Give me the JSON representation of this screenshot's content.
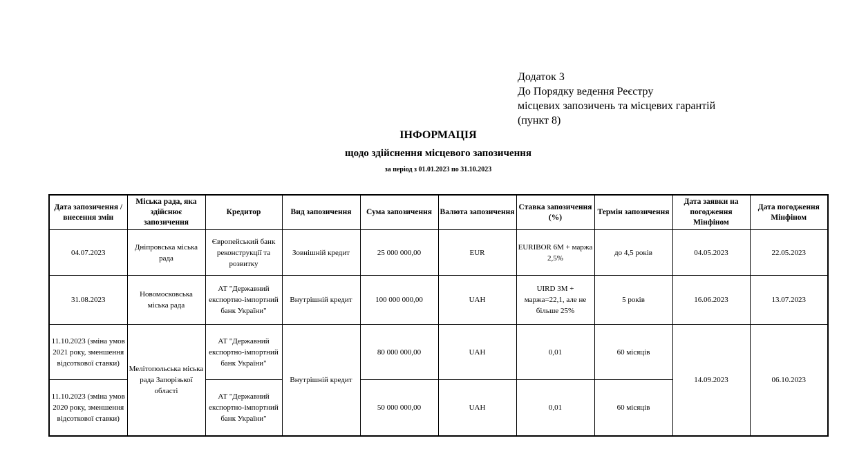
{
  "annex": {
    "line1": "Додаток 3",
    "line2": "До Порядку ведення Реєстру",
    "line3": "місцевих запозичень та місцевих гарантій",
    "line4": "(пункт 8)"
  },
  "title": "ІНФОРМАЦІЯ",
  "subtitle": "щодо здійснення місцевого запозичення",
  "period": "за період з 01.01.2023 по  31.10.2023",
  "table": {
    "headers": [
      "Дата запозичення / внесення змін",
      "Міська рада, яка здійснює запозичення",
      "Кредитор",
      "Вид запозичення",
      "Сума запозичення",
      "Валюта запозичення",
      "Ставка запозичення (%)",
      "Термін запозичення",
      "Дата заявки на погодження Мінфіном",
      "Дата погодження Мінфіном"
    ],
    "rows": [
      {
        "date": "04.07.2023",
        "council": "Дніпровська міська рада",
        "creditor": "Європейський банк реконструкції та розвитку",
        "type": "Зовнішній кредит",
        "amount": "25 000 000,00",
        "currency": "EUR",
        "rate": "EURIBOR 6M + маржа 2,5%",
        "term": "до 4,5 років",
        "request_date": "04.05.2023",
        "approval_date": "22.05.2023"
      },
      {
        "date": "31.08.2023",
        "council": "Новомосковська міська рада",
        "creditor": "АТ \"Державний експортно-імпортний банк України\"",
        "type": "Внутрішній кредит",
        "amount": "100 000 000,00",
        "currency": "UAH",
        "rate": "UIRD 3M + маржа=22,1, але  не більше 25%",
        "term": "5 років",
        "request_date": "16.06.2023",
        "approval_date": "13.07.2023"
      },
      {
        "date": "11.10.2023 (зміна умов 2021 року, зменшення відсоткової ставки)",
        "council": "Мелітопольська міська рада Запорізької області",
        "creditor": "АТ \"Державний експортно-імпортний банк України\"",
        "type": "Внутрішній кредит",
        "amount": "80 000 000,00",
        "currency": "UAH",
        "rate": "0,01",
        "term": "60 місяців",
        "request_date": "14.09.2023",
        "approval_date": "06.10.2023"
      },
      {
        "date": "11.10.2023 (зміна умов 2020 року, зменшення відсоткової ставки)",
        "creditor": "АТ \"Державний експортно-імпортний банк України\"",
        "amount": "50 000 000,00",
        "currency": "UAH",
        "rate": "0,01",
        "term": "60 місяців"
      }
    ]
  }
}
